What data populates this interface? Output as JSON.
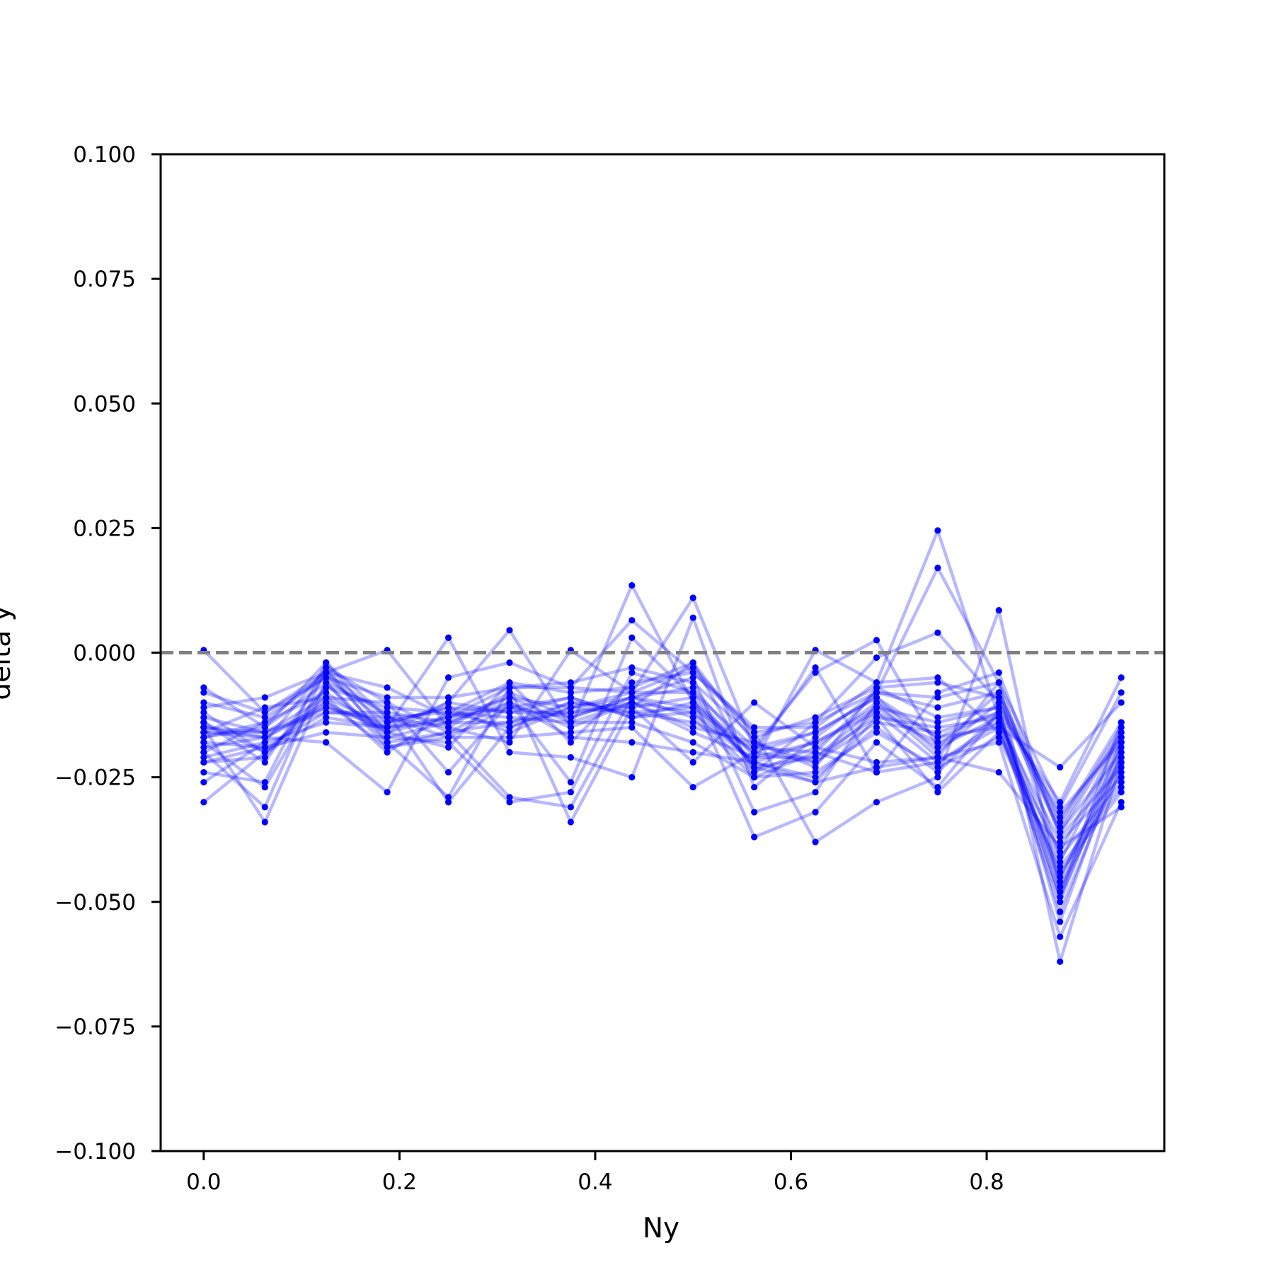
{
  "chart_data": {
    "type": "line",
    "title": "",
    "xlabel": "Ny",
    "ylabel": "delta y",
    "xlim": [
      -0.044,
      0.9815
    ],
    "ylim": [
      -0.1,
      0.1
    ],
    "xticks": [
      0.0,
      0.2,
      0.4,
      0.6,
      0.8
    ],
    "xtick_labels": [
      "0.0",
      "0.2",
      "0.4",
      "0.6",
      "0.8"
    ],
    "yticks": [
      0.1,
      0.075,
      0.05,
      0.025,
      0.0,
      -0.025,
      -0.05,
      -0.075,
      -0.1
    ],
    "ytick_labels": [
      "0.100",
      "0.075",
      "0.050",
      "0.025",
      "0.000",
      "−0.025",
      "−0.050",
      "−0.075",
      "−0.100"
    ],
    "grid": false,
    "legend": "none",
    "reference_line": {
      "y": 0.0,
      "style": "dashed",
      "color": "#808080"
    },
    "line_color": "#0000ff",
    "line_opacity": 0.28,
    "marker_color": "#0000ff",
    "x": [
      0.0,
      0.0625,
      0.125,
      0.1875,
      0.25,
      0.3125,
      0.375,
      0.4375,
      0.5,
      0.5625,
      0.625,
      0.6875,
      0.75,
      0.8125,
      0.875,
      0.9375
    ],
    "series": [
      {
        "values": [
          0.0005,
          -0.012,
          -0.004,
          0.0005,
          -0.015,
          -0.018,
          0.0005,
          -0.008,
          0.011,
          -0.019,
          -0.004,
          0.0025,
          -0.019,
          -0.008,
          -0.036,
          -0.016
        ]
      },
      {
        "values": [
          -0.007,
          -0.015,
          -0.002,
          -0.016,
          -0.01,
          0.0045,
          -0.015,
          0.0135,
          -0.01,
          -0.022,
          0.0005,
          -0.006,
          0.0245,
          -0.013,
          -0.049,
          -0.014
        ]
      },
      {
        "values": [
          -0.03,
          -0.02,
          -0.009,
          -0.015,
          0.003,
          -0.02,
          -0.021,
          -0.025,
          0.007,
          -0.027,
          -0.017,
          -0.008,
          0.017,
          -0.006,
          -0.062,
          -0.022
        ]
      },
      {
        "values": [
          -0.015,
          -0.034,
          -0.006,
          -0.018,
          -0.029,
          -0.007,
          -0.034,
          -0.011,
          -0.002,
          -0.024,
          -0.014,
          -0.001,
          0.004,
          -0.01,
          -0.033,
          -0.017
        ]
      },
      {
        "values": [
          -0.016,
          -0.017,
          -0.018,
          -0.028,
          -0.005,
          -0.002,
          -0.007,
          0.0065,
          -0.004,
          -0.016,
          -0.038,
          -0.03,
          -0.025,
          0.0085,
          -0.048,
          -0.018
        ]
      },
      {
        "values": [
          -0.02,
          -0.031,
          -0.003,
          -0.01,
          -0.024,
          -0.01,
          -0.026,
          0.003,
          -0.009,
          -0.037,
          -0.032,
          -0.018,
          -0.027,
          -0.012,
          -0.03,
          -0.005
        ]
      },
      {
        "values": [
          -0.012,
          -0.02,
          -0.01,
          -0.019,
          -0.016,
          -0.029,
          -0.031,
          -0.009,
          -0.005,
          -0.032,
          -0.028,
          -0.01,
          -0.021,
          -0.024,
          -0.039,
          -0.031
        ]
      },
      {
        "values": [
          -0.014,
          -0.022,
          -0.004,
          -0.017,
          -0.018,
          -0.03,
          -0.028,
          -0.004,
          -0.008,
          -0.023,
          -0.026,
          -0.013,
          -0.028,
          -0.016,
          -0.044,
          -0.028
        ]
      },
      {
        "values": [
          -0.024,
          -0.026,
          -0.002,
          -0.013,
          -0.017,
          -0.017,
          -0.016,
          -0.015,
          -0.027,
          -0.02,
          -0.003,
          -0.024,
          -0.008,
          -0.004,
          -0.037,
          -0.023
        ]
      },
      {
        "values": [
          -0.018,
          -0.027,
          -0.006,
          -0.012,
          -0.03,
          -0.015,
          -0.01,
          -0.011,
          -0.022,
          -0.01,
          -0.019,
          -0.022,
          -0.021,
          -0.006,
          -0.041,
          -0.026
        ]
      },
      {
        "values": [
          -0.016,
          -0.011,
          -0.009,
          -0.02,
          -0.012,
          -0.006,
          -0.008,
          -0.007,
          -0.002,
          -0.018,
          -0.023,
          -0.007,
          -0.013,
          -0.011,
          -0.054,
          -0.02
        ]
      },
      {
        "values": [
          -0.021,
          -0.018,
          -0.014,
          -0.015,
          -0.014,
          -0.009,
          -0.011,
          -0.012,
          -0.014,
          -0.019,
          -0.016,
          -0.009,
          -0.017,
          -0.015,
          -0.05,
          -0.019
        ]
      },
      {
        "values": [
          -0.013,
          -0.016,
          -0.011,
          -0.014,
          -0.011,
          -0.012,
          -0.012,
          -0.01,
          -0.016,
          -0.021,
          -0.021,
          -0.011,
          -0.019,
          -0.013,
          -0.046,
          -0.018
        ]
      },
      {
        "values": [
          -0.017,
          -0.014,
          -0.008,
          -0.016,
          -0.013,
          -0.011,
          -0.009,
          -0.013,
          -0.012,
          -0.022,
          -0.018,
          -0.012,
          -0.022,
          -0.014,
          -0.052,
          -0.022
        ]
      },
      {
        "values": [
          -0.018,
          -0.019,
          -0.012,
          -0.013,
          -0.015,
          -0.008,
          -0.013,
          -0.009,
          -0.011,
          -0.02,
          -0.022,
          -0.014,
          -0.016,
          -0.012,
          -0.047,
          -0.024
        ]
      },
      {
        "values": [
          -0.022,
          -0.021,
          -0.007,
          -0.011,
          -0.012,
          -0.013,
          -0.014,
          -0.014,
          -0.018,
          -0.025,
          -0.024,
          -0.016,
          -0.023,
          -0.017,
          -0.043,
          -0.027
        ]
      },
      {
        "values": [
          -0.01,
          -0.013,
          -0.005,
          -0.009,
          -0.009,
          -0.007,
          -0.006,
          -0.003,
          -0.006,
          -0.017,
          -0.013,
          -0.007,
          -0.006,
          -0.009,
          -0.035,
          -0.015
        ]
      },
      {
        "values": [
          -0.026,
          -0.018,
          -0.003,
          -0.018,
          -0.016,
          -0.01,
          -0.017,
          -0.018,
          -0.02,
          -0.022,
          -0.026,
          -0.023,
          -0.021,
          -0.018,
          -0.057,
          -0.03
        ]
      },
      {
        "values": [
          -0.011,
          -0.009,
          -0.004,
          -0.007,
          -0.013,
          -0.007,
          -0.007,
          -0.008,
          -0.003,
          -0.016,
          -0.014,
          -0.008,
          -0.009,
          -0.006,
          -0.031,
          -0.008
        ]
      },
      {
        "values": [
          -0.015,
          -0.016,
          -0.012,
          -0.012,
          -0.014,
          -0.014,
          -0.012,
          -0.011,
          -0.009,
          -0.023,
          -0.021,
          -0.013,
          -0.015,
          -0.013,
          -0.045,
          -0.021
        ]
      },
      {
        "values": [
          -0.008,
          -0.012,
          -0.005,
          -0.014,
          -0.011,
          -0.016,
          -0.011,
          -0.009,
          -0.013,
          -0.025,
          -0.02,
          -0.024,
          -0.022,
          -0.015,
          -0.023,
          -0.01
        ]
      },
      {
        "values": [
          -0.019,
          -0.017,
          -0.01,
          -0.016,
          -0.019,
          -0.006,
          -0.018,
          -0.006,
          -0.004,
          -0.015,
          -0.015,
          -0.006,
          -0.005,
          -0.016,
          -0.04,
          -0.016
        ]
      },
      {
        "values": [
          -0.017,
          -0.015,
          -0.006,
          -0.019,
          -0.017,
          -0.011,
          -0.013,
          -0.009,
          -0.007,
          -0.021,
          -0.018,
          -0.011,
          -0.014,
          -0.011,
          -0.032,
          -0.018
        ]
      },
      {
        "values": [
          -0.014,
          -0.02,
          -0.013,
          -0.015,
          -0.01,
          -0.012,
          -0.009,
          -0.013,
          -0.01,
          -0.02,
          -0.016,
          -0.009,
          -0.02,
          -0.01,
          -0.036,
          -0.02
        ]
      },
      {
        "values": [
          -0.022,
          -0.019,
          -0.016,
          -0.017,
          -0.014,
          -0.01,
          -0.015,
          -0.01,
          -0.015,
          -0.018,
          -0.022,
          -0.012,
          -0.018,
          -0.014,
          -0.038,
          -0.025
        ]
      },
      {
        "values": [
          -0.016,
          -0.016,
          -0.009,
          -0.01,
          -0.016,
          -0.014,
          -0.01,
          -0.012,
          -0.011,
          -0.022,
          -0.025,
          -0.015,
          -0.024,
          -0.012,
          -0.042,
          -0.017
        ]
      },
      {
        "values": [
          -0.02,
          -0.014,
          -0.004,
          -0.013,
          -0.012,
          -0.015,
          -0.011,
          -0.008,
          -0.008,
          -0.019,
          -0.02,
          -0.008,
          -0.011,
          -0.008,
          -0.034,
          -0.014
        ]
      },
      {
        "values": [
          -0.015,
          -0.017,
          -0.011,
          -0.015,
          -0.013,
          -0.009,
          -0.014,
          -0.01,
          -0.012,
          -0.024,
          -0.019,
          -0.01,
          -0.017,
          -0.012,
          -0.049,
          -0.021
        ]
      }
    ]
  }
}
